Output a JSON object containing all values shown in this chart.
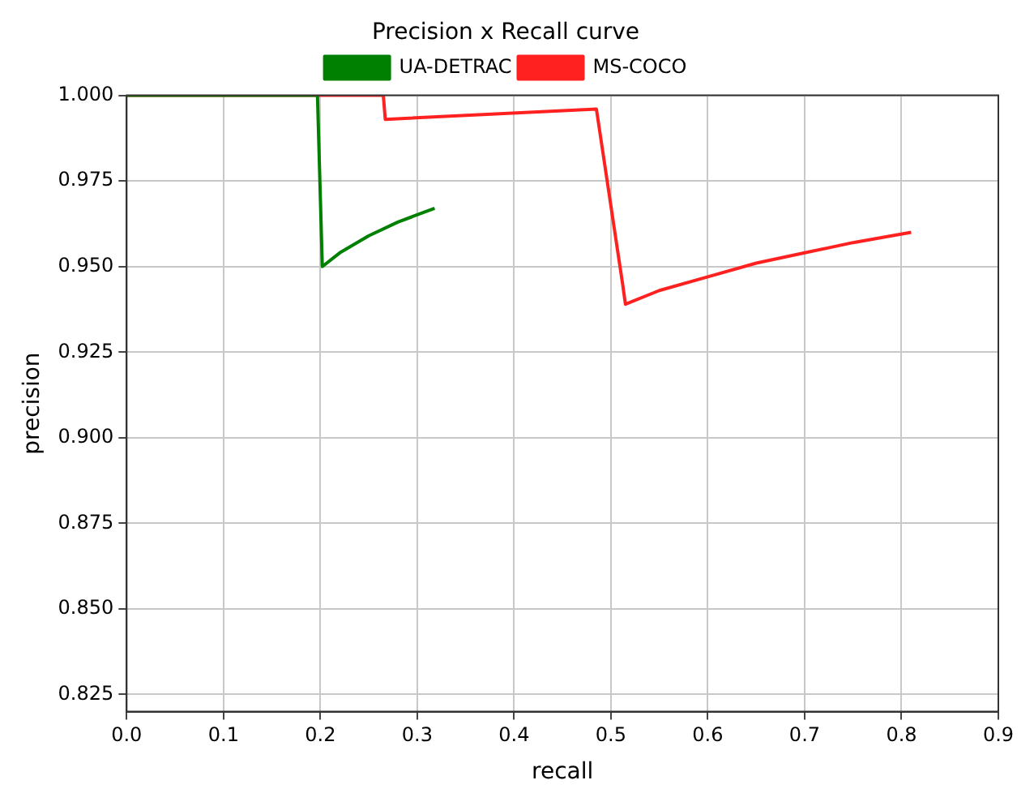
{
  "chart_data": {
    "type": "line",
    "title": "Precision x Recall curve",
    "xlabel": "recall",
    "ylabel": "precision",
    "xlim": [
      0,
      0.9
    ],
    "xticks": [
      {
        "value": 0,
        "label": "0.0"
      },
      0.1,
      0.2,
      0.3,
      0.4,
      0.5,
      0.6,
      0.7,
      0.8,
      0.9
    ],
    "ylim": [
      0.82,
      1.0
    ],
    "yticks": [
      {
        "value": 0.825,
        "label": "0.825"
      },
      {
        "value": 0.85,
        "label": "0.850"
      },
      {
        "value": 0.875,
        "label": "0.875"
      },
      {
        "value": 0.9,
        "label": "0.900"
      },
      {
        "value": 0.925,
        "label": "0.925"
      },
      {
        "value": 0.95,
        "label": "0.950"
      },
      {
        "value": 0.975,
        "label": "0.975"
      },
      {
        "value": 1.0,
        "label": "1.000"
      }
    ],
    "grid": true,
    "legend": "top",
    "marker": "none",
    "line_style": "solid",
    "series": [
      {
        "name": "UA-DETRAC",
        "color": "#008000",
        "x": [
          0,
          0.197,
          0.2,
          0.202,
          0.22,
          0.25,
          0.28,
          0.318
        ],
        "values": [
          1.0,
          1.0,
          0.97,
          0.95,
          0.954,
          0.959,
          0.963,
          0.967
        ]
      },
      {
        "name": "MS-COCO",
        "color": "#ff2020",
        "x": [
          0,
          0.265,
          0.267,
          0.485,
          0.512,
          0.515,
          0.55,
          0.6,
          0.65,
          0.7,
          0.75,
          0.81
        ],
        "values": [
          1.0,
          1.0,
          0.993,
          0.996,
          0.945,
          0.939,
          0.943,
          0.947,
          0.951,
          0.954,
          0.957,
          0.96
        ]
      }
    ]
  }
}
